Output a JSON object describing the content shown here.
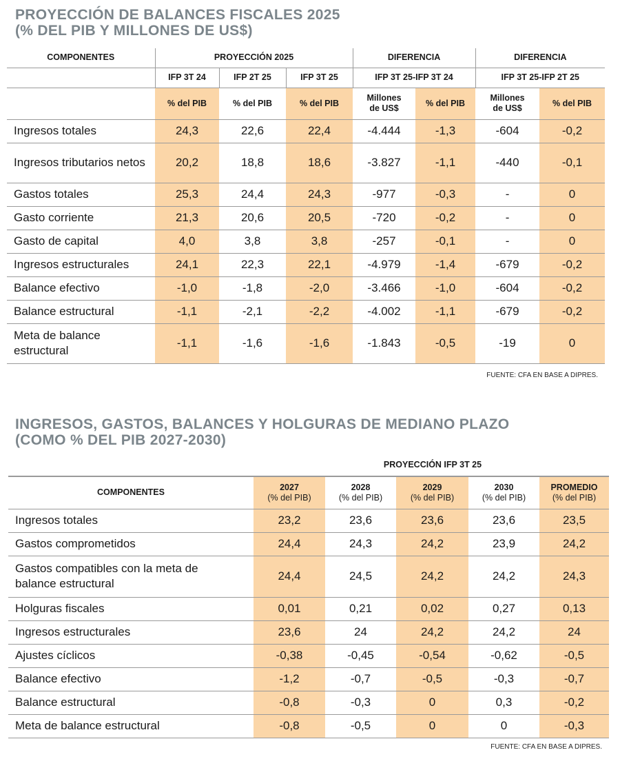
{
  "t1": {
    "title_line1": "PROYECCIÓN DE BALANCES FISCALES 2025",
    "title_line2": "(% DEL PIB Y MILLONES DE US$)",
    "h_componentes": "COMPONENTES",
    "h_proy": "PROYECCIÓN 2025",
    "h_dif1": "DIFERENCIA",
    "h_dif2": "DIFERENCIA",
    "sub": [
      "IFP 3T 24",
      "IFP 2T 25",
      "IFP 3T 25",
      "IFP 3T 25-IFP 3T 24",
      "IFP 3T 25-IFP 2T 25"
    ],
    "units": [
      "% del PIB",
      "% del PIB",
      "% del PIB",
      "Millones de US$",
      "% del PIB",
      "Millones de US$",
      "% del PIB"
    ],
    "rows": [
      {
        "label": "Ingresos totales",
        "values": [
          "24,3",
          "22,6",
          "22,4",
          "-4.444",
          "-1,3",
          "-604",
          "-0,2"
        ]
      },
      {
        "label": "Ingresos tributarios netos",
        "values": [
          "20,2",
          "18,8",
          "18,6",
          "-3.827",
          "-1,1",
          "-440",
          "-0,1"
        ]
      },
      {
        "label": "Gastos totales",
        "values": [
          "25,3",
          "24,4",
          "24,3",
          "-977",
          "-0,3",
          "-",
          "0"
        ]
      },
      {
        "label": "Gasto corriente",
        "values": [
          "21,3",
          "20,6",
          "20,5",
          "-720",
          "-0,2",
          "-",
          "0"
        ]
      },
      {
        "label": "Gasto de capital",
        "values": [
          "4,0",
          "3,8",
          "3,8",
          "-257",
          "-0,1",
          "-",
          "0"
        ]
      },
      {
        "label": "Ingresos estructurales",
        "values": [
          "24,1",
          "22,3",
          "22,1",
          "-4.979",
          "-1,4",
          "-679",
          "-0,2"
        ]
      },
      {
        "label": "Balance efectivo",
        "values": [
          "-1,0",
          "-1,8",
          "-2,0",
          "-3.466",
          "-1,0",
          "-604",
          "-0,2"
        ]
      },
      {
        "label": "Balance estructural",
        "values": [
          "-1,1",
          "-2,1",
          "-2,2",
          "-4.002",
          "-1,1",
          "-679",
          "-0,2"
        ]
      },
      {
        "label": "Meta de balance estructural",
        "values": [
          "-1,1",
          "-1,6",
          "-1,6",
          "-1.843",
          "-0,5",
          "-19",
          "0"
        ]
      }
    ],
    "source": "FUENTE: CFA EN  BASE A DIPRES."
  },
  "t2": {
    "title_line1": "INGRESOS, GASTOS, BALANCES Y HOLGURAS DE MEDIANO PLAZO",
    "title_line2": "(COMO % DEL PIB 2027-2030)",
    "h_proy": "PROYECCIÓN IFP 3T 25",
    "h_componentes": "COMPONENTES",
    "cols": [
      {
        "top": "2027",
        "bottom": "(% del PIB)"
      },
      {
        "top": "2028",
        "bottom": "(% del PIB)"
      },
      {
        "top": "2029",
        "bottom": "(% del PIB)"
      },
      {
        "top": "2030",
        "bottom": "(% del PIB)"
      },
      {
        "top": "PROMEDIO",
        "bottom": "(% del PIB)"
      }
    ],
    "rows": [
      {
        "label": "Ingresos totales",
        "values": [
          "23,2",
          "23,6",
          "23,6",
          "23,6",
          "23,5"
        ]
      },
      {
        "label": "Gastos comprometidos",
        "values": [
          "24,4",
          "24,3",
          "24,2",
          "23,9",
          "24,2"
        ]
      },
      {
        "label": "Gastos compatibles con la meta de balance estructural",
        "values": [
          "24,4",
          "24,5",
          "24,2",
          "24,2",
          "24,3"
        ]
      },
      {
        "label": "Holguras fiscales",
        "values": [
          "0,01",
          "0,21",
          "0,02",
          "0,27",
          "0,13"
        ]
      },
      {
        "label": "Ingresos estructurales",
        "values": [
          "23,6",
          "24",
          "24,2",
          "24,2",
          "24"
        ]
      },
      {
        "label": "Ajustes cíclicos",
        "values": [
          "-0,38",
          "-0,45",
          "-0,54",
          "-0,62",
          "-0,5"
        ]
      },
      {
        "label": "Balance efectivo",
        "values": [
          "-1,2",
          "-0,7",
          "-0,5",
          "-0,3",
          "-0,7"
        ]
      },
      {
        "label": "Balance estructural",
        "values": [
          "-0,8",
          "-0,3",
          "0",
          "0,3",
          "-0,2"
        ]
      },
      {
        "label": "Meta de balance estructural",
        "values": [
          "-0,8",
          "-0,5",
          "0",
          "0",
          "-0,3"
        ]
      }
    ],
    "source": "FUENTE: CFA EN BASE A DIPRES."
  },
  "colors": {
    "highlight": "#fbd6a8",
    "title": "#7b858b"
  }
}
